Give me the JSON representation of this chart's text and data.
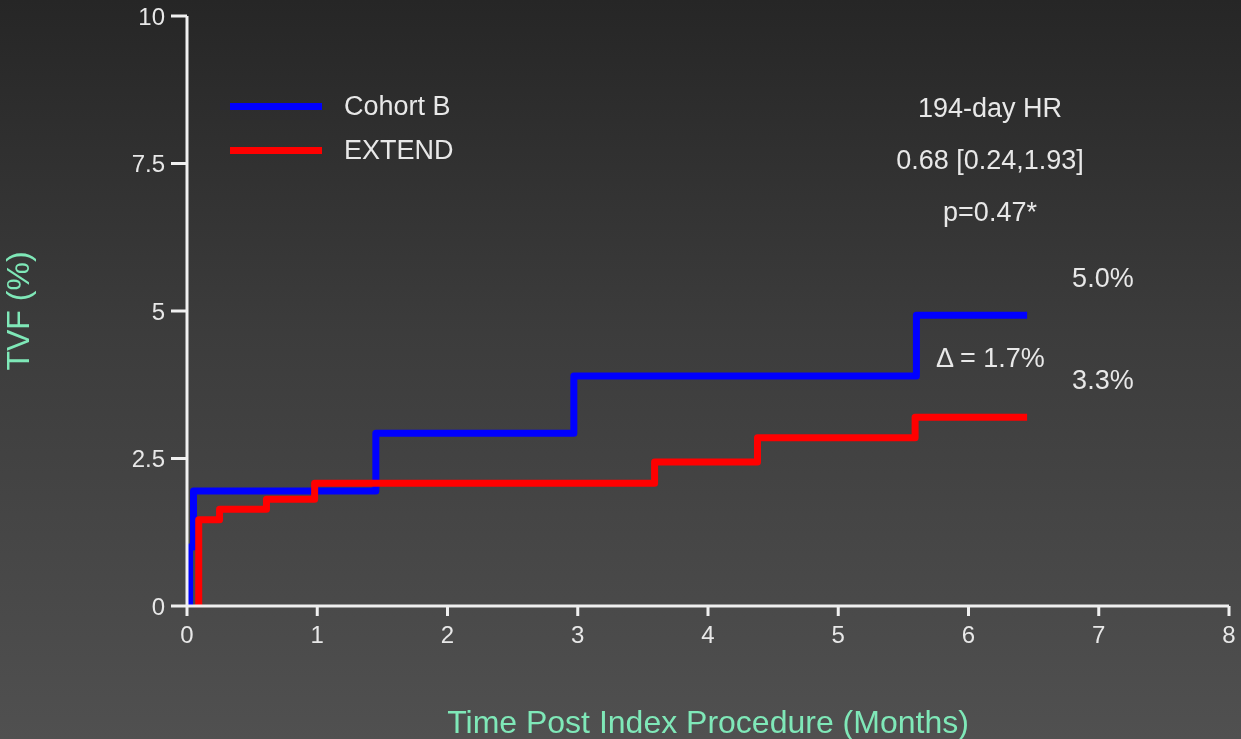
{
  "chart_data": {
    "type": "step",
    "xlabel": "Time Post Index Procedure (Months)",
    "ylabel": "TVF (%)",
    "xlim": [
      0,
      8
    ],
    "xticks": [
      0,
      1,
      2,
      3,
      4,
      5,
      6,
      7,
      8
    ],
    "ylim": [
      0,
      10
    ],
    "yticks": [
      0,
      2.5,
      5,
      7.5,
      10
    ],
    "grid": false,
    "legend": "top left",
    "series": [
      {
        "name": "Cohort B",
        "color": "#0000ff",
        "x": [
          0,
          0.02,
          0.05,
          1.45,
          2.97,
          5.6,
          6.45
        ],
        "values": [
          0,
          1,
          1.95,
          2.93,
          3.9,
          4.93,
          4.93
        ]
      },
      {
        "name": "EXTEND",
        "color": "#ff0000",
        "x": [
          0.07,
          0.09,
          0.25,
          0.61,
          0.98,
          3.59,
          4.38,
          5.59,
          6.45
        ],
        "values": [
          0,
          1.46,
          1.64,
          1.81,
          2.08,
          2.44,
          2.85,
          3.2,
          3.2
        ]
      }
    ],
    "annotations": [
      "194-day HR",
      "0.68 [0.24,1.93]",
      "p=0.47*",
      "Δ = 1.7%",
      {
        "text": "5.0%",
        "x": 6.45,
        "y": 4.93
      },
      {
        "text": "3.3%",
        "x": 6.45,
        "y": 3.2
      }
    ]
  }
}
